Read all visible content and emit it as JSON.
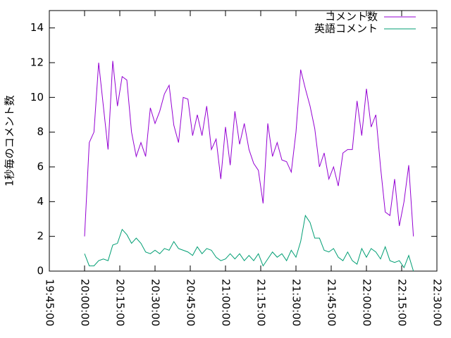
{
  "chart_data": {
    "type": "line",
    "ylabel": "1秒毎のコメント数",
    "x": [
      "20:00:00",
      "20:02:00",
      "20:04:00",
      "20:06:00",
      "20:08:00",
      "20:10:00",
      "20:12:00",
      "20:14:00",
      "20:16:00",
      "20:18:00",
      "20:20:00",
      "20:22:00",
      "20:24:00",
      "20:26:00",
      "20:28:00",
      "20:30:00",
      "20:32:00",
      "20:34:00",
      "20:36:00",
      "20:38:00",
      "20:40:00",
      "20:42:00",
      "20:44:00",
      "20:46:00",
      "20:48:00",
      "20:50:00",
      "20:52:00",
      "20:54:00",
      "20:56:00",
      "20:58:00",
      "21:00:00",
      "21:02:00",
      "21:04:00",
      "21:06:00",
      "21:08:00",
      "21:10:00",
      "21:12:00",
      "21:14:00",
      "21:16:00",
      "21:18:00",
      "21:20:00",
      "21:22:00",
      "21:24:00",
      "21:26:00",
      "21:28:00",
      "21:30:00",
      "21:32:00",
      "21:34:00",
      "21:36:00",
      "21:38:00",
      "21:40:00",
      "21:42:00",
      "21:44:00",
      "21:46:00",
      "21:48:00",
      "21:50:00",
      "21:52:00",
      "21:54:00",
      "21:56:00",
      "21:58:00",
      "22:00:00",
      "22:02:00",
      "22:04:00",
      "22:06:00",
      "22:08:00",
      "22:10:00",
      "22:12:00",
      "22:14:00",
      "22:16:00",
      "22:18:00",
      "22:20:00"
    ],
    "series": [
      {
        "name": "コメント数",
        "color": "#9400d3",
        "values": [
          2.0,
          7.4,
          8.0,
          12.0,
          9.5,
          7.0,
          12.1,
          9.5,
          11.2,
          11.0,
          8.0,
          6.6,
          7.4,
          6.6,
          9.4,
          8.5,
          9.2,
          10.2,
          10.7,
          8.4,
          7.4,
          10.0,
          9.9,
          7.8,
          9.0,
          7.8,
          9.5,
          7.0,
          7.6,
          5.3,
          8.3,
          6.1,
          9.2,
          7.3,
          8.5,
          7.0,
          6.2,
          5.8,
          3.9,
          8.5,
          6.6,
          7.4,
          6.4,
          6.3,
          5.7,
          8.0,
          11.6,
          10.5,
          9.5,
          8.2,
          6.0,
          6.8,
          5.3,
          6.0,
          4.9,
          6.8,
          7.0,
          7.0,
          9.8,
          7.8,
          10.5,
          8.3,
          9.0,
          6.0,
          3.4,
          3.2,
          5.3,
          2.6,
          4.0,
          6.1,
          2.0
        ]
      },
      {
        "name": "英語コメント",
        "color": "#009e73",
        "values": [
          1.0,
          0.3,
          0.3,
          0.6,
          0.7,
          0.6,
          1.5,
          1.6,
          2.4,
          2.1,
          1.6,
          1.9,
          1.6,
          1.1,
          1.0,
          1.2,
          1.0,
          1.3,
          1.2,
          1.7,
          1.3,
          1.2,
          1.1,
          0.9,
          1.4,
          1.0,
          1.3,
          1.2,
          0.8,
          0.6,
          0.7,
          1.0,
          0.7,
          1.0,
          0.6,
          0.9,
          0.6,
          1.0,
          0.3,
          0.7,
          1.1,
          0.8,
          1.0,
          0.6,
          1.2,
          0.8,
          1.7,
          3.2,
          2.8,
          1.9,
          1.9,
          1.2,
          1.1,
          1.3,
          0.8,
          0.6,
          1.1,
          0.6,
          0.4,
          1.3,
          0.8,
          1.3,
          1.1,
          0.7,
          1.4,
          0.6,
          0.5,
          0.6,
          0.2,
          0.9,
          0.0
        ]
      }
    ],
    "xlim": [
      "19:45:00",
      "22:30:00"
    ],
    "xticks": [
      "19:45:00",
      "20:00:00",
      "20:15:00",
      "20:30:00",
      "20:45:00",
      "21:00:00",
      "21:15:00",
      "21:30:00",
      "21:45:00",
      "22:00:00",
      "22:15:00",
      "22:30:00"
    ],
    "ylim": [
      0,
      15
    ],
    "yticks": [
      0,
      2,
      4,
      6,
      8,
      10,
      12,
      14
    ],
    "legend": "top-right"
  }
}
